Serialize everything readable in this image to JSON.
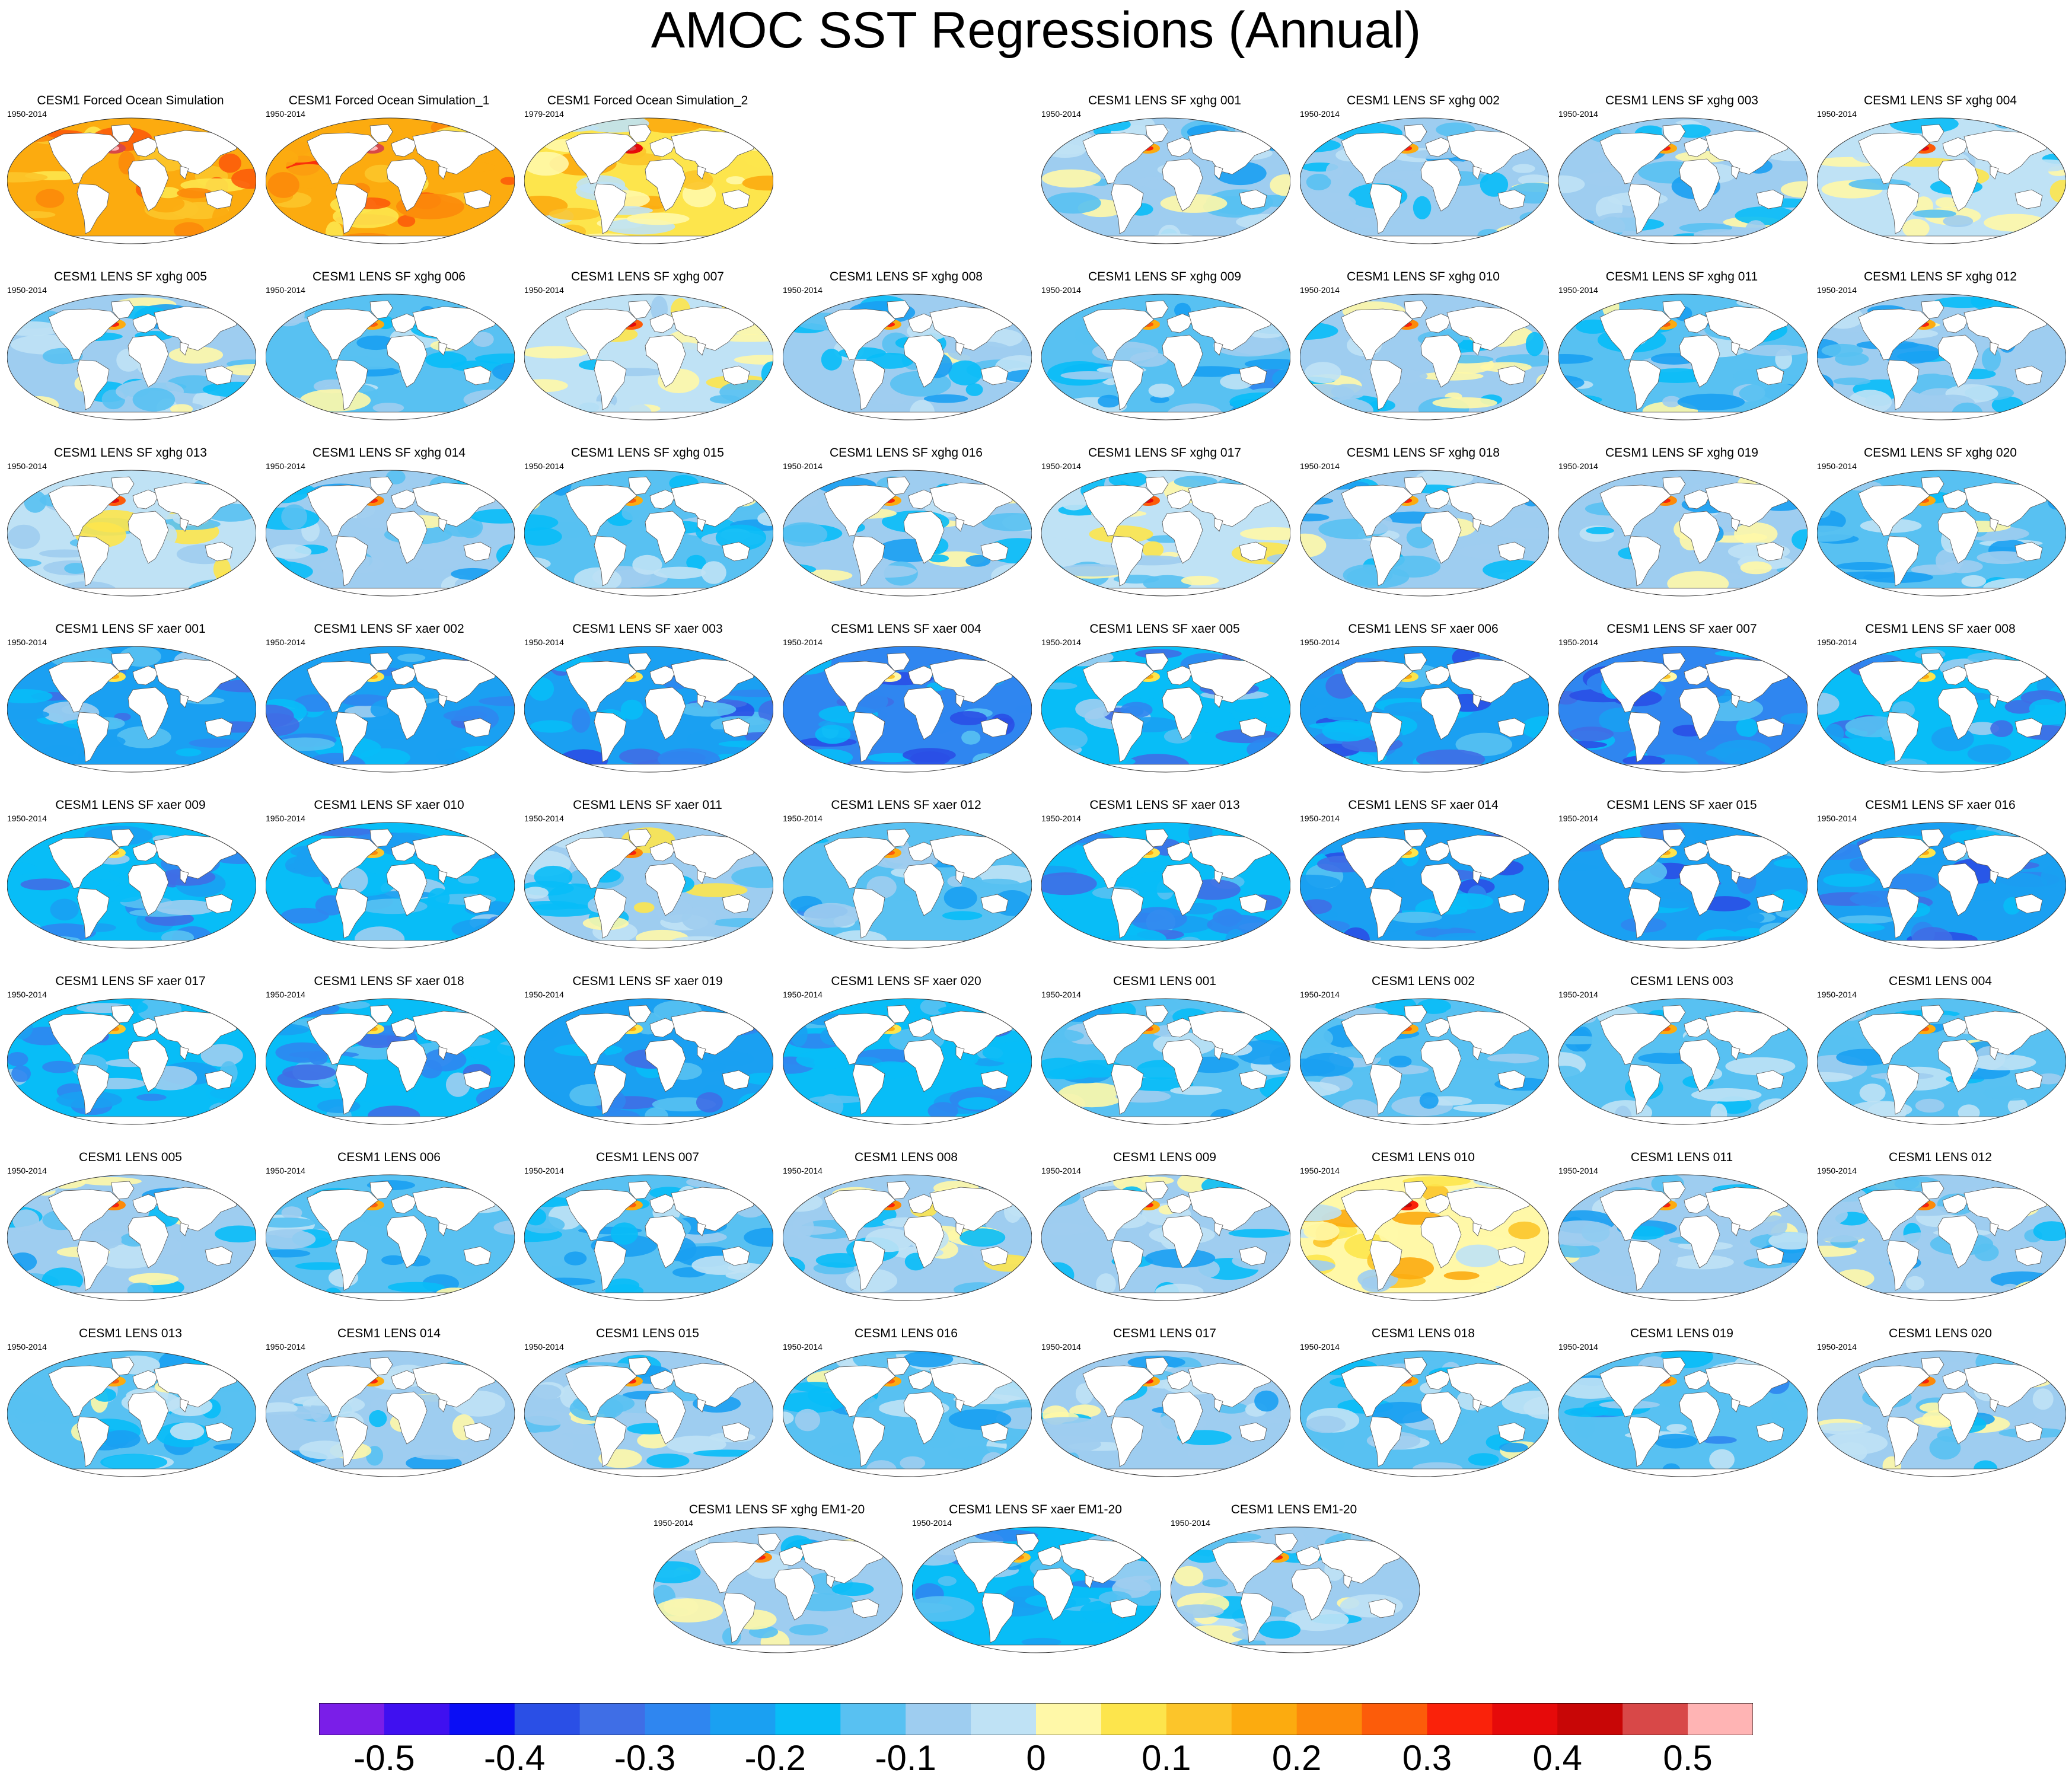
{
  "title": "AMOC SST Regressions (Annual)",
  "chart_data": {
    "type": "heatmap",
    "title": "AMOC SST Regressions (Annual)",
    "projection": "Robinson global ocean maps (land masked white)",
    "grid": "8 columns x 8 rows of panels plus a bottom row of 3 ensemble-mean panels",
    "colorbar": {
      "levels": [
        -0.55,
        -0.5,
        -0.45,
        -0.4,
        -0.35,
        -0.3,
        -0.25,
        -0.2,
        -0.15,
        -0.1,
        -0.05,
        0,
        0.05,
        0.1,
        0.15,
        0.2,
        0.25,
        0.3,
        0.35,
        0.4,
        0.45,
        0.5,
        0.55
      ],
      "colors": [
        "#7a1ee8",
        "#3f10f0",
        "#0a0ef5",
        "#2a4fe6",
        "#3f6ee6",
        "#2f86f0",
        "#1aa0f2",
        "#08bdf7",
        "#58c1f2",
        "#9ecdf0",
        "#bfe2f5",
        "#fff8a8",
        "#fde54c",
        "#fcc52a",
        "#fcab0f",
        "#fc8a0a",
        "#fc5c0a",
        "#fa220a",
        "#e60a0a",
        "#c80606",
        "#d84848",
        "#ffb4b4"
      ],
      "tick_labels": [
        "-0.5",
        "-0.4",
        "-0.3",
        "-0.2",
        "-0.1",
        "0",
        "0.1",
        "0.2",
        "0.3",
        "0.4",
        "0.5"
      ],
      "tick_values": [
        -0.5,
        -0.4,
        -0.3,
        -0.2,
        -0.1,
        0,
        0.1,
        0.2,
        0.3,
        0.4,
        0.5
      ]
    },
    "panels": [
      {
        "title": "CESM1 Forced Ocean Simulation",
        "years": "1950-2014",
        "row": 0,
        "col": 0,
        "mean_anomaly": 0.17
      },
      {
        "title": "CESM1 Forced Ocean Simulation_1",
        "years": "1950-2014",
        "row": 0,
        "col": 1,
        "mean_anomaly": 0.19
      },
      {
        "title": "CESM1 Forced Ocean Simulation_2",
        "years": "1979-2014",
        "row": 0,
        "col": 2,
        "mean_anomaly": 0.08
      },
      {
        "title": "CESM1 LENS SF xghg 001",
        "years": "1950-2014",
        "row": 0,
        "col": 4,
        "mean_anomaly": -0.1
      },
      {
        "title": "CESM1 LENS SF xghg 002",
        "years": "1950-2014",
        "row": 0,
        "col": 5,
        "mean_anomaly": -0.1
      },
      {
        "title": "CESM1 LENS SF xghg 003",
        "years": "1950-2014",
        "row": 0,
        "col": 6,
        "mean_anomaly": -0.1
      },
      {
        "title": "CESM1 LENS SF xghg 004",
        "years": "1950-2014",
        "row": 0,
        "col": 7,
        "mean_anomaly": -0.04
      },
      {
        "title": "CESM1 LENS SF xghg 005",
        "years": "1950-2014",
        "row": 1,
        "col": 0,
        "mean_anomaly": -0.1
      },
      {
        "title": "CESM1 LENS SF xghg 006",
        "years": "1950-2014",
        "row": 1,
        "col": 1,
        "mean_anomaly": -0.12
      },
      {
        "title": "CESM1 LENS SF xghg 007",
        "years": "1950-2014",
        "row": 1,
        "col": 2,
        "mean_anomaly": -0.03
      },
      {
        "title": "CESM1 LENS SF xghg 008",
        "years": "1950-2014",
        "row": 1,
        "col": 3,
        "mean_anomaly": -0.1
      },
      {
        "title": "CESM1 LENS SF xghg 009",
        "years": "1950-2014",
        "row": 1,
        "col": 4,
        "mean_anomaly": -0.13
      },
      {
        "title": "CESM1 LENS SF xghg 010",
        "years": "1950-2014",
        "row": 1,
        "col": 5,
        "mean_anomaly": -0.08
      },
      {
        "title": "CESM1 LENS SF xghg 011",
        "years": "1950-2014",
        "row": 1,
        "col": 6,
        "mean_anomaly": -0.12
      },
      {
        "title": "CESM1 LENS SF xghg 012",
        "years": "1950-2014",
        "row": 1,
        "col": 7,
        "mean_anomaly": -0.1
      },
      {
        "title": "CESM1 LENS SF xghg 013",
        "years": "1950-2014",
        "row": 2,
        "col": 0,
        "mean_anomaly": -0.03
      },
      {
        "title": "CESM1 LENS SF xghg 014",
        "years": "1950-2014",
        "row": 2,
        "col": 1,
        "mean_anomaly": -0.09
      },
      {
        "title": "CESM1 LENS SF xghg 015",
        "years": "1950-2014",
        "row": 2,
        "col": 2,
        "mean_anomaly": -0.11
      },
      {
        "title": "CESM1 LENS SF xghg 016",
        "years": "1950-2014",
        "row": 2,
        "col": 3,
        "mean_anomaly": -0.1
      },
      {
        "title": "CESM1 LENS SF xghg 017",
        "years": "1950-2014",
        "row": 2,
        "col": 4,
        "mean_anomaly": -0.04
      },
      {
        "title": "CESM1 LENS SF xghg 018",
        "years": "1950-2014",
        "row": 2,
        "col": 5,
        "mean_anomaly": -0.1
      },
      {
        "title": "CESM1 LENS SF xghg 019",
        "years": "1950-2014",
        "row": 2,
        "col": 6,
        "mean_anomaly": -0.09
      },
      {
        "title": "CESM1 LENS SF xghg 020",
        "years": "1950-2014",
        "row": 2,
        "col": 7,
        "mean_anomaly": -0.12
      },
      {
        "title": "CESM1 LENS SF xaer 001",
        "years": "1950-2014",
        "row": 3,
        "col": 0,
        "mean_anomaly": -0.22
      },
      {
        "title": "CESM1 LENS SF xaer 002",
        "years": "1950-2014",
        "row": 3,
        "col": 1,
        "mean_anomaly": -0.22
      },
      {
        "title": "CESM1 LENS SF xaer 003",
        "years": "1950-2014",
        "row": 3,
        "col": 2,
        "mean_anomaly": -0.24
      },
      {
        "title": "CESM1 LENS SF xaer 004",
        "years": "1950-2014",
        "row": 3,
        "col": 3,
        "mean_anomaly": -0.26
      },
      {
        "title": "CESM1 LENS SF xaer 005",
        "years": "1950-2014",
        "row": 3,
        "col": 4,
        "mean_anomaly": -0.2
      },
      {
        "title": "CESM1 LENS SF xaer 006",
        "years": "1950-2014",
        "row": 3,
        "col": 5,
        "mean_anomaly": -0.24
      },
      {
        "title": "CESM1 LENS SF xaer 007",
        "years": "1950-2014",
        "row": 3,
        "col": 6,
        "mean_anomaly": -0.26
      },
      {
        "title": "CESM1 LENS SF xaer 008",
        "years": "1950-2014",
        "row": 3,
        "col": 7,
        "mean_anomaly": -0.2
      },
      {
        "title": "CESM1 LENS SF xaer 009",
        "years": "1950-2014",
        "row": 4,
        "col": 0,
        "mean_anomaly": -0.2
      },
      {
        "title": "CESM1 LENS SF xaer 010",
        "years": "1950-2014",
        "row": 4,
        "col": 1,
        "mean_anomaly": -0.18
      },
      {
        "title": "CESM1 LENS SF xaer 011",
        "years": "1950-2014",
        "row": 4,
        "col": 2,
        "mean_anomaly": -0.06
      },
      {
        "title": "CESM1 LENS SF xaer 012",
        "years": "1950-2014",
        "row": 4,
        "col": 3,
        "mean_anomaly": -0.14
      },
      {
        "title": "CESM1 LENS SF xaer 013",
        "years": "1950-2014",
        "row": 4,
        "col": 4,
        "mean_anomaly": -0.2
      },
      {
        "title": "CESM1 LENS SF xaer 014",
        "years": "1950-2014",
        "row": 4,
        "col": 5,
        "mean_anomaly": -0.24
      },
      {
        "title": "CESM1 LENS SF xaer 015",
        "years": "1950-2014",
        "row": 4,
        "col": 6,
        "mean_anomaly": -0.24
      },
      {
        "title": "CESM1 LENS SF xaer 016",
        "years": "1950-2014",
        "row": 4,
        "col": 7,
        "mean_anomaly": -0.24
      },
      {
        "title": "CESM1 LENS SF xaer 017",
        "years": "1950-2014",
        "row": 5,
        "col": 0,
        "mean_anomaly": -0.18
      },
      {
        "title": "CESM1 LENS SF xaer 018",
        "years": "1950-2014",
        "row": 5,
        "col": 1,
        "mean_anomaly": -0.2
      },
      {
        "title": "CESM1 LENS SF xaer 019",
        "years": "1950-2014",
        "row": 5,
        "col": 2,
        "mean_anomaly": -0.22
      },
      {
        "title": "CESM1 LENS SF xaer 020",
        "years": "1950-2014",
        "row": 5,
        "col": 3,
        "mean_anomaly": -0.2
      },
      {
        "title": "CESM1 LENS 001",
        "years": "1950-2014",
        "row": 5,
        "col": 4,
        "mean_anomaly": -0.12
      },
      {
        "title": "CESM1 LENS 002",
        "years": "1950-2014",
        "row": 5,
        "col": 5,
        "mean_anomaly": -0.12
      },
      {
        "title": "CESM1 LENS 003",
        "years": "1950-2014",
        "row": 5,
        "col": 6,
        "mean_anomaly": -0.12
      },
      {
        "title": "CESM1 LENS 004",
        "years": "1950-2014",
        "row": 5,
        "col": 7,
        "mean_anomaly": -0.12
      },
      {
        "title": "CESM1 LENS 005",
        "years": "1950-2014",
        "row": 6,
        "col": 0,
        "mean_anomaly": -0.08
      },
      {
        "title": "CESM1 LENS 006",
        "years": "1950-2014",
        "row": 6,
        "col": 1,
        "mean_anomaly": -0.12
      },
      {
        "title": "CESM1 LENS 007",
        "years": "1950-2014",
        "row": 6,
        "col": 2,
        "mean_anomaly": -0.12
      },
      {
        "title": "CESM1 LENS 008",
        "years": "1950-2014",
        "row": 6,
        "col": 3,
        "mean_anomaly": -0.06
      },
      {
        "title": "CESM1 LENS 009",
        "years": "1950-2014",
        "row": 6,
        "col": 4,
        "mean_anomaly": -0.1
      },
      {
        "title": "CESM1 LENS 010",
        "years": "1950-2014",
        "row": 6,
        "col": 5,
        "mean_anomaly": 0.04
      },
      {
        "title": "CESM1 LENS 011",
        "years": "1950-2014",
        "row": 6,
        "col": 6,
        "mean_anomaly": -0.1
      },
      {
        "title": "CESM1 LENS 012",
        "years": "1950-2014",
        "row": 6,
        "col": 7,
        "mean_anomaly": -0.08
      },
      {
        "title": "CESM1 LENS 013",
        "years": "1950-2014",
        "row": 7,
        "col": 0,
        "mean_anomaly": -0.12
      },
      {
        "title": "CESM1 LENS 014",
        "years": "1950-2014",
        "row": 7,
        "col": 1,
        "mean_anomaly": -0.1
      },
      {
        "title": "CESM1 LENS 015",
        "years": "1950-2014",
        "row": 7,
        "col": 2,
        "mean_anomaly": -0.1
      },
      {
        "title": "CESM1 LENS 016",
        "years": "1950-2014",
        "row": 7,
        "col": 3,
        "mean_anomaly": -0.12
      },
      {
        "title": "CESM1 LENS 017",
        "years": "1950-2014",
        "row": 7,
        "col": 4,
        "mean_anomaly": -0.1
      },
      {
        "title": "CESM1 LENS 018",
        "years": "1950-2014",
        "row": 7,
        "col": 5,
        "mean_anomaly": -0.12
      },
      {
        "title": "CESM1 LENS 019",
        "years": "1950-2014",
        "row": 7,
        "col": 6,
        "mean_anomaly": -0.14
      },
      {
        "title": "CESM1 LENS 020",
        "years": "1950-2014",
        "row": 7,
        "col": 7,
        "mean_anomaly": -0.08
      },
      {
        "title": "CESM1 LENS SF xghg EM1-20",
        "years": "1950-2014",
        "row": 8,
        "col": 2.5,
        "mean_anomaly": -0.08
      },
      {
        "title": "CESM1 LENS SF xaer EM1-20",
        "years": "1950-2014",
        "row": 8,
        "col": 3.5,
        "mean_anomaly": -0.18
      },
      {
        "title": "CESM1 LENS EM1-20",
        "years": "1950-2014",
        "row": 8,
        "col": 4.5,
        "mean_anomaly": -0.1
      }
    ]
  }
}
